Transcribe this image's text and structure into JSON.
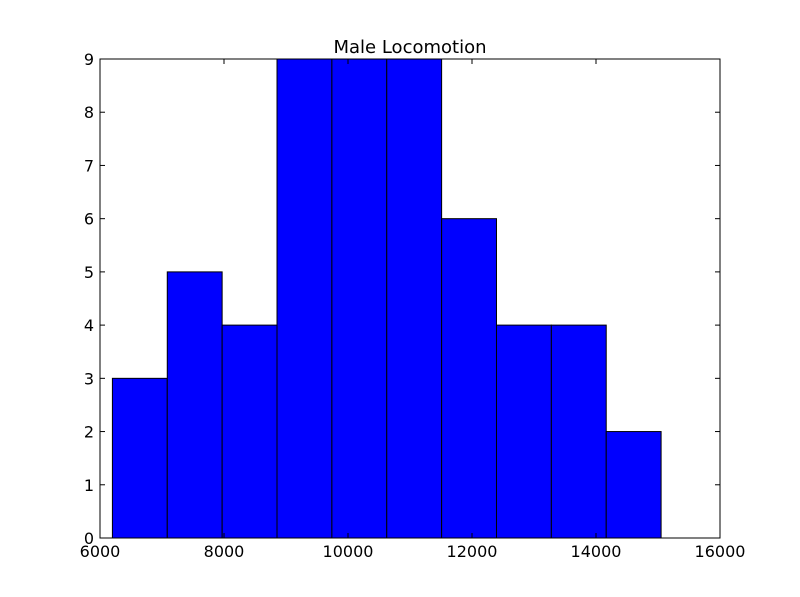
{
  "chart_data": {
    "type": "bar",
    "title": "Male Locomotion",
    "xlabel": "",
    "ylabel": "",
    "bins": [
      {
        "x0": 6200,
        "x1": 7085,
        "count": 3
      },
      {
        "x0": 7085,
        "x1": 7970,
        "count": 5
      },
      {
        "x0": 7970,
        "x1": 8855,
        "count": 4
      },
      {
        "x0": 8855,
        "x1": 9740,
        "count": 9
      },
      {
        "x0": 9740,
        "x1": 10625,
        "count": 9
      },
      {
        "x0": 10625,
        "x1": 11510,
        "count": 9
      },
      {
        "x0": 11510,
        "x1": 12395,
        "count": 6
      },
      {
        "x0": 12395,
        "x1": 13280,
        "count": 4
      },
      {
        "x0": 13280,
        "x1": 14165,
        "count": 4
      },
      {
        "x0": 14165,
        "x1": 15050,
        "count": 2
      }
    ],
    "xlim": [
      6000,
      16000
    ],
    "ylim": [
      0,
      9
    ],
    "xticks": [
      6000,
      8000,
      10000,
      12000,
      14000,
      16000
    ],
    "yticks": [
      0,
      1,
      2,
      3,
      4,
      5,
      6,
      7,
      8,
      9
    ],
    "bar_color": "#0000ff",
    "edge_color": "#000000",
    "grid": false
  }
}
